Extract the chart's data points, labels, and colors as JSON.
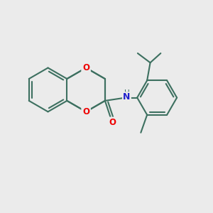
{
  "bg_color": "#ebebeb",
  "bond_color": "#3d7060",
  "o_color": "#ee0000",
  "n_color": "#2020cc",
  "lw": 1.5,
  "fig_size": [
    3.0,
    3.0
  ],
  "dpi": 100,
  "xlim": [
    0,
    10
  ],
  "ylim": [
    0,
    10
  ]
}
